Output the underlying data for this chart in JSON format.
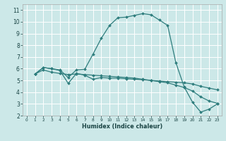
{
  "xlabel": "Humidex (Indice chaleur)",
  "bg_color": "#cce8e8",
  "grid_color": "#ffffff",
  "line_color": "#2e7d7d",
  "xlim": [
    -0.5,
    23.5
  ],
  "ylim": [
    2,
    11.5
  ],
  "xticks": [
    0,
    1,
    2,
    3,
    4,
    5,
    6,
    7,
    8,
    9,
    10,
    11,
    12,
    13,
    14,
    15,
    16,
    17,
    18,
    19,
    20,
    21,
    22,
    23
  ],
  "yticks": [
    2,
    3,
    4,
    5,
    6,
    7,
    8,
    9,
    10,
    11
  ],
  "curve1_x": [
    1,
    2,
    3,
    4,
    5,
    6,
    7,
    8,
    9,
    10,
    11,
    12,
    13,
    14,
    15,
    16,
    17,
    18,
    19,
    20,
    21,
    22,
    23
  ],
  "curve1_y": [
    5.55,
    6.1,
    6.0,
    5.9,
    5.25,
    5.9,
    5.95,
    7.25,
    8.6,
    9.7,
    10.35,
    10.4,
    10.55,
    10.7,
    10.6,
    10.15,
    9.7,
    6.5,
    4.45,
    3.15,
    2.3,
    2.55,
    3.0
  ],
  "curve2_x": [
    1,
    2,
    3,
    4,
    5,
    6,
    7,
    8,
    9,
    10,
    11,
    12,
    13,
    14,
    15,
    16,
    17,
    18,
    19,
    20,
    21,
    22,
    23
  ],
  "curve2_y": [
    5.55,
    6.1,
    6.0,
    5.85,
    4.75,
    5.6,
    5.45,
    5.1,
    5.25,
    5.2,
    5.2,
    5.15,
    5.1,
    5.05,
    5.0,
    4.95,
    4.9,
    4.85,
    4.8,
    4.7,
    4.5,
    4.35,
    4.2
  ],
  "curve3_x": [
    1,
    2,
    3,
    4,
    5,
    6,
    7,
    8,
    9,
    10,
    11,
    12,
    13,
    14,
    15,
    16,
    17,
    18,
    19,
    20,
    21,
    22,
    23
  ],
  "curve3_y": [
    5.55,
    5.9,
    5.7,
    5.6,
    5.5,
    5.55,
    5.5,
    5.45,
    5.4,
    5.35,
    5.3,
    5.25,
    5.2,
    5.1,
    5.0,
    4.9,
    4.8,
    4.6,
    4.4,
    4.1,
    3.6,
    3.25,
    3.05
  ],
  "marker_size": 2.0,
  "line_width": 0.9,
  "tick_fontsize_x": 4.2,
  "tick_fontsize_y": 5.5,
  "xlabel_fontsize": 5.8,
  "xlabel_fontweight": "bold"
}
